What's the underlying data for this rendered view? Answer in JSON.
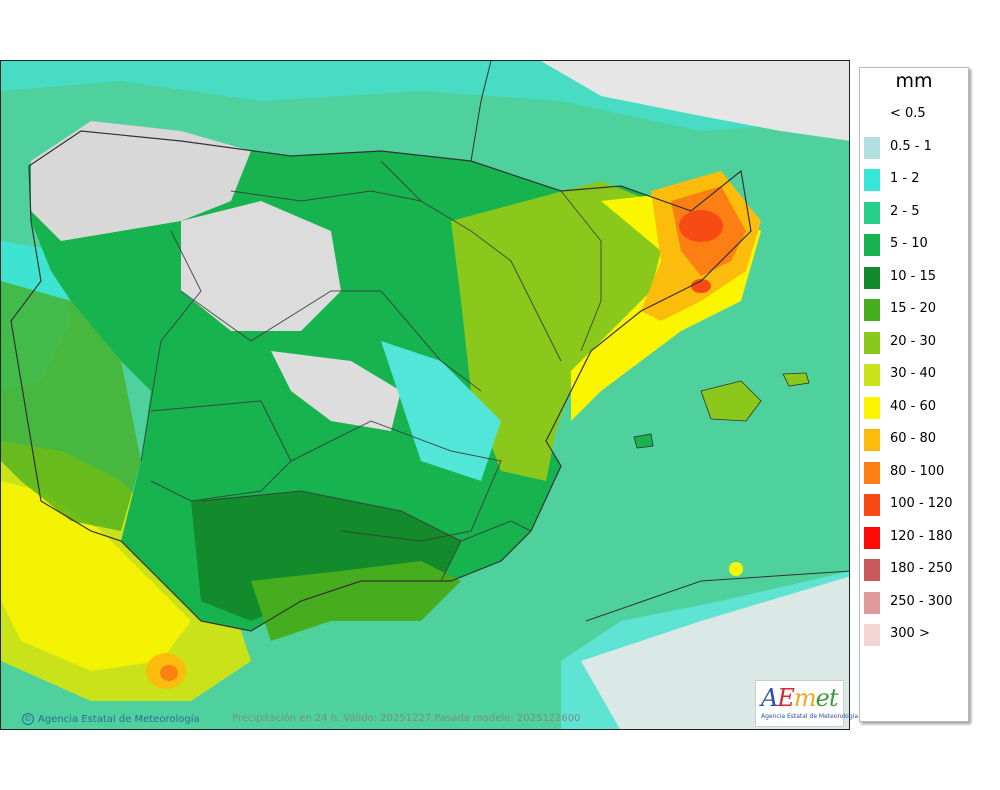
{
  "legend": {
    "unit": "mm",
    "items": [
      {
        "label": "< 0.5",
        "color": ""
      },
      {
        "label": "0.5 - 1",
        "color": "#b2dfe0"
      },
      {
        "label": "1 - 2",
        "color": "#37e8da"
      },
      {
        "label": "2 - 5",
        "color": "#25cf8c"
      },
      {
        "label": "5 - 10",
        "color": "#17b34f"
      },
      {
        "label": "10 - 15",
        "color": "#138a2c"
      },
      {
        "label": "15 - 20",
        "color": "#46ad1e"
      },
      {
        "label": "20 - 30",
        "color": "#8bc81c"
      },
      {
        "label": "30 - 40",
        "color": "#c9e21a"
      },
      {
        "label": "40 - 60",
        "color": "#fcf500"
      },
      {
        "label": "60 - 80",
        "color": "#fcbc0c"
      },
      {
        "label": "80 - 100",
        "color": "#fb7f12"
      },
      {
        "label": "100 - 120",
        "color": "#f84b13"
      },
      {
        "label": "120 - 180",
        "color": "#fb0a07"
      },
      {
        "label": "180 - 250",
        "color": "#c9585a"
      },
      {
        "label": "250 - 300",
        "color": "#df9a9c"
      },
      {
        "label": "300 >",
        "color": "#f4d4d4"
      }
    ]
  },
  "credit": "Agencia Estatal de Meteorología",
  "caption": "Precipitación en 24 h. Válido: 20251227 Pasada modelo: 2025122600",
  "logo": {
    "a": "A",
    "e": "E",
    "m": "m",
    "et": "et",
    "subtitle": "Agencia Estatal de Meteorología"
  }
}
